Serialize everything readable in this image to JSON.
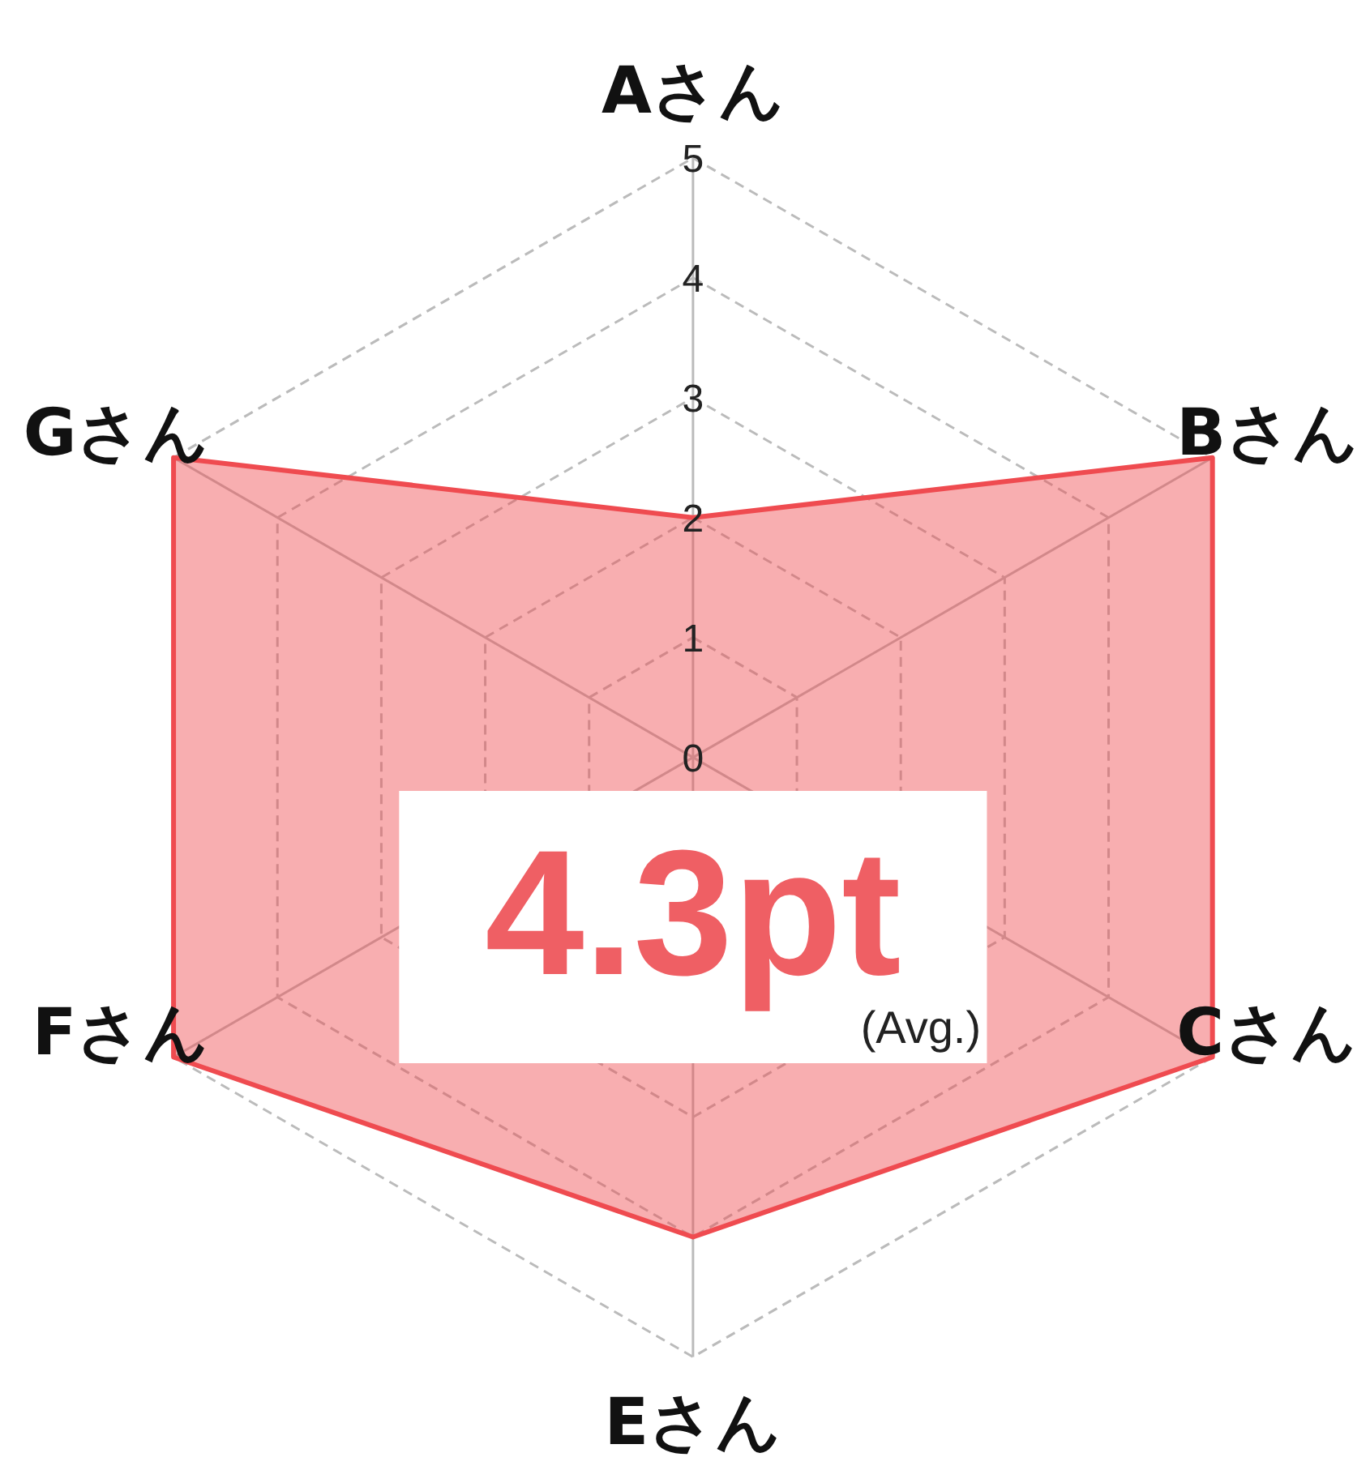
{
  "chart_data": {
    "type": "radar",
    "categories": [
      "Aさん",
      "Bさん",
      "Cさん",
      "Eさん",
      "Fさん",
      "Gさん"
    ],
    "series": [
      {
        "color": "#ef4b50",
        "values": [
          2,
          5,
          5,
          4,
          5,
          5
        ]
      }
    ],
    "ylim": [
      0,
      5
    ],
    "yticks": [
      0,
      1,
      2,
      3,
      4,
      5
    ],
    "grid": true,
    "annotations": [
      "4.3pt",
      "(Avg.)"
    ]
  }
}
